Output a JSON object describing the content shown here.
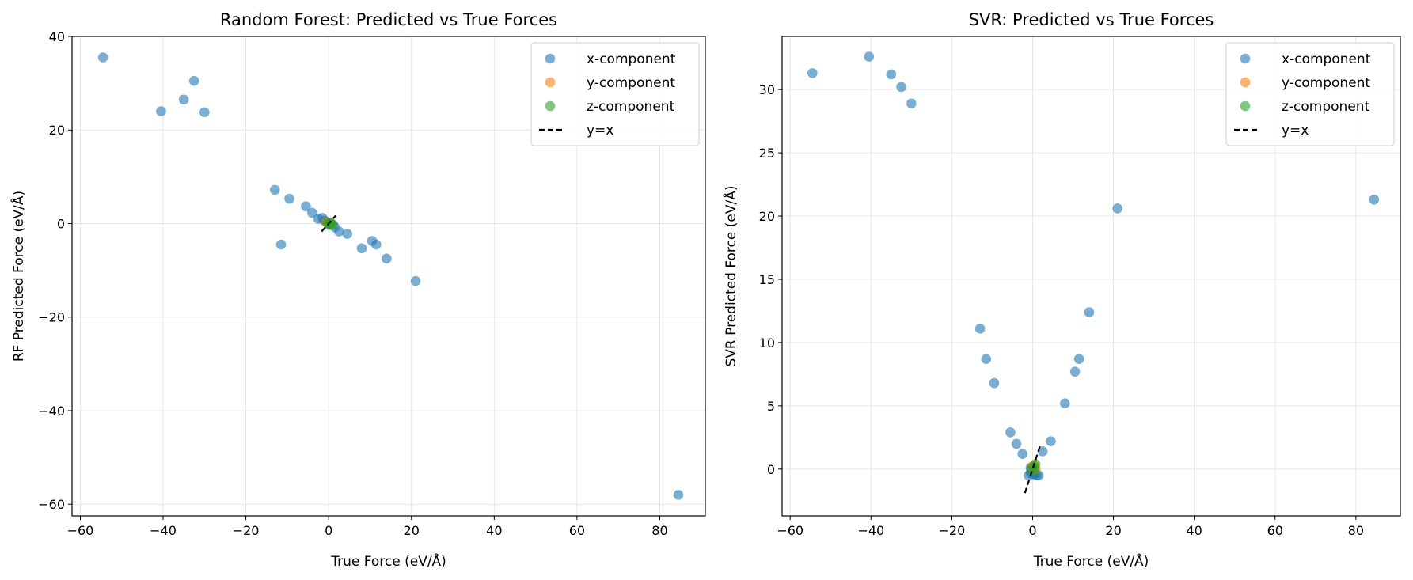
{
  "chart_data": [
    {
      "type": "scatter",
      "title": "Random Forest: Predicted vs True Forces",
      "xlabel": "True Force (eV/Å)",
      "ylabel": "RF Predicted Force (eV/Å)",
      "xlim": [
        -62,
        91
      ],
      "ylim": [
        -62.5,
        40
      ],
      "xticks": [
        -60,
        -40,
        -20,
        0,
        20,
        40,
        60,
        80
      ],
      "yticks": [
        -60,
        -40,
        -20,
        0,
        20,
        40
      ],
      "xtick_labels": [
        "−60",
        "−40",
        "−20",
        "0",
        "20",
        "40",
        "60",
        "80"
      ],
      "ytick_labels": [
        "−60",
        "−40",
        "−20",
        "0",
        "20",
        "40"
      ],
      "grid": true,
      "legend": "top-right",
      "reference_line": {
        "name": "y=x",
        "x": [
          -1.7,
          1.7
        ],
        "y": [
          -1.7,
          1.7
        ]
      },
      "series": [
        {
          "name": "x-component",
          "color": "#1f77b4",
          "points": [
            [
              -54.5,
              35.5
            ],
            [
              -40.5,
              24.0
            ],
            [
              -35.0,
              26.5
            ],
            [
              -32.5,
              30.5
            ],
            [
              -30.0,
              23.8
            ],
            [
              -13.0,
              7.2
            ],
            [
              -11.5,
              -4.5
            ],
            [
              -9.5,
              5.3
            ],
            [
              -5.5,
              3.7
            ],
            [
              -4.0,
              2.3
            ],
            [
              -2.5,
              1.0
            ],
            [
              -1.0,
              0.6
            ],
            [
              0.5,
              0.1
            ],
            [
              1.0,
              -0.2
            ],
            [
              2.5,
              -1.7
            ],
            [
              4.5,
              -2.2
            ],
            [
              8.0,
              -5.3
            ],
            [
              10.5,
              -3.7
            ],
            [
              11.5,
              -4.5
            ],
            [
              14.0,
              -7.5
            ],
            [
              21.0,
              -12.3
            ],
            [
              84.5,
              -58.0
            ],
            [
              -0.5,
              0.4
            ],
            [
              0.2,
              -0.3
            ],
            [
              -1.5,
              1.2
            ],
            [
              1.5,
              -0.8
            ]
          ]
        },
        {
          "name": "y-component",
          "color": "#ff7f0e",
          "points": [
            [
              -0.6,
              0.3
            ],
            [
              0.2,
              -0.1
            ],
            [
              0.6,
              -0.2
            ],
            [
              -0.3,
              0.2
            ]
          ]
        },
        {
          "name": "z-component",
          "color": "#2ca02c",
          "points": [
            [
              -0.4,
              0.2
            ],
            [
              0.3,
              -0.1
            ],
            [
              0.8,
              -0.3
            ],
            [
              0.0,
              0.0
            ],
            [
              0.5,
              0.1
            ]
          ]
        }
      ]
    },
    {
      "type": "scatter",
      "title": "SVR: Predicted vs True Forces",
      "xlabel": "True Force (eV/Å)",
      "ylabel": "SVR Predicted Force (eV/Å)",
      "xlim": [
        -62,
        91
      ],
      "ylim": [
        -3.7,
        34.2
      ],
      "xticks": [
        -60,
        -40,
        -20,
        0,
        20,
        40,
        60,
        80
      ],
      "yticks": [
        0,
        5,
        10,
        15,
        20,
        25,
        30
      ],
      "xtick_labels": [
        "−60",
        "−40",
        "−20",
        "0",
        "20",
        "40",
        "60",
        "80"
      ],
      "ytick_labels": [
        "0",
        "5",
        "10",
        "15",
        "20",
        "25",
        "30"
      ],
      "grid": true,
      "legend": "top-right",
      "reference_line": {
        "name": "y=x",
        "x": [
          -1.9,
          1.9
        ],
        "y": [
          -1.9,
          1.9
        ]
      },
      "series": [
        {
          "name": "x-component",
          "color": "#1f77b4",
          "points": [
            [
              -54.5,
              31.3
            ],
            [
              -40.5,
              32.6
            ],
            [
              -35.0,
              31.2
            ],
            [
              -32.5,
              30.2
            ],
            [
              -30.0,
              28.9
            ],
            [
              -13.0,
              11.1
            ],
            [
              -11.5,
              8.7
            ],
            [
              -9.5,
              6.8
            ],
            [
              -5.5,
              2.9
            ],
            [
              -4.0,
              2.0
            ],
            [
              -2.5,
              1.2
            ],
            [
              2.5,
              1.4
            ],
            [
              4.5,
              2.2
            ],
            [
              8.0,
              5.2
            ],
            [
              10.5,
              7.7
            ],
            [
              11.5,
              8.7
            ],
            [
              14.0,
              12.4
            ],
            [
              21.0,
              20.6
            ],
            [
              84.5,
              21.3
            ],
            [
              -1.0,
              -0.5
            ],
            [
              -0.5,
              -0.3
            ],
            [
              0.0,
              -0.4
            ],
            [
              0.5,
              -0.4
            ],
            [
              1.0,
              -0.5
            ],
            [
              1.5,
              -0.5
            ],
            [
              -0.5,
              0.1
            ],
            [
              0.3,
              -0.2
            ]
          ]
        },
        {
          "name": "y-component",
          "color": "#ff7f0e",
          "points": [
            [
              -0.2,
              0.2
            ],
            [
              0.4,
              0.3
            ],
            [
              0.8,
              0.0
            ]
          ]
        },
        {
          "name": "z-component",
          "color": "#2ca02c",
          "points": [
            [
              -0.3,
              0.0
            ],
            [
              0.2,
              0.2
            ],
            [
              0.7,
              0.4
            ],
            [
              0.5,
              -0.1
            ]
          ]
        }
      ]
    }
  ]
}
